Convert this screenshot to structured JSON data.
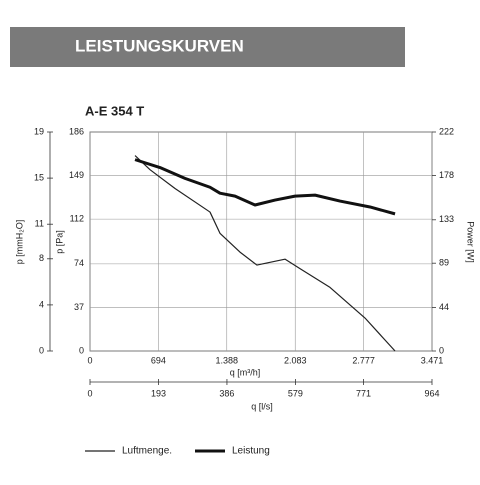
{
  "header": {
    "title": "LEISTUNGSKURVEN"
  },
  "chart_data": {
    "type": "line",
    "title": "A-E 354 T",
    "xlabel": "q [m³/h]",
    "ylabel": "p [Pa]",
    "y2label": "Power [W]",
    "y3label": "p [mmH₂O]",
    "x2label": "q [l/s]",
    "xlim": [
      0,
      3471
    ],
    "xticks": [
      0,
      694,
      {
        "value": 1388,
        "label": "1.388"
      },
      {
        "value": 2083,
        "label": "2.083"
      },
      {
        "value": 2777,
        "label": "2.777"
      },
      {
        "value": 3471,
        "label": "3.471"
      }
    ],
    "x2lim": [
      0,
      964
    ],
    "x2ticks": [
      0,
      193,
      386,
      579,
      771,
      964
    ],
    "ylim": [
      0,
      186
    ],
    "yticks": [
      0,
      37,
      74,
      112,
      149,
      186
    ],
    "y3lim": [
      0,
      19
    ],
    "y3ticks": [
      0,
      4,
      8,
      11,
      15,
      19
    ],
    "y2lim": [
      0,
      222
    ],
    "y2ticks": [
      0,
      44,
      89,
      133,
      178,
      222
    ],
    "grid": true,
    "series": [
      {
        "name": "Luftmenge.",
        "color": "#222222",
        "width": 1.2,
        "x": [
          457,
          609,
          863,
          1218,
          1319,
          1522,
          1694,
          1979,
          2131,
          2436,
          2791,
          3096
        ],
        "values": [
          166,
          154,
          138,
          118,
          100,
          84,
          73,
          78,
          70,
          54,
          28,
          0
        ]
      },
      {
        "name": "Leistung",
        "color": "#111111",
        "width": 3,
        "axis": "y2",
        "x": [
          457,
          710,
          964,
          1218,
          1319,
          1472,
          1675,
          1878,
          2081,
          2284,
          2537,
          2842,
          3096
        ],
        "values": [
          194,
          186,
          175,
          166,
          160,
          157,
          148,
          153,
          157,
          158,
          152,
          146,
          139
        ]
      }
    ]
  }
}
